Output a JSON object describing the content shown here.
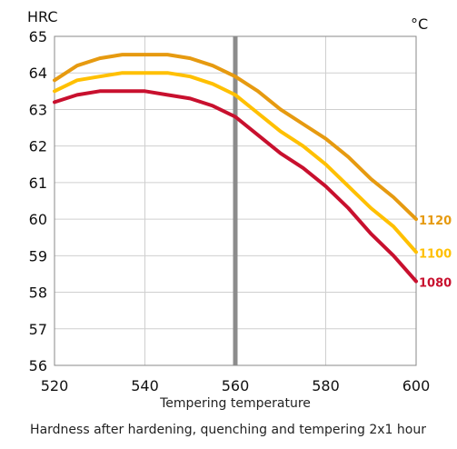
{
  "chart_data": {
    "type": "line",
    "ylabel": "HRC",
    "xunit": "°C",
    "xlabel": "Tempering temperature",
    "caption": "Hardness after hardening, quenching and tempering  2x1 hour",
    "xlim": [
      520,
      600
    ],
    "ylim": [
      56,
      65
    ],
    "xticks": [
      520,
      540,
      560,
      580,
      600
    ],
    "yticks": [
      56,
      57,
      58,
      59,
      60,
      61,
      62,
      63,
      64,
      65
    ],
    "grid": true,
    "highlight_x": 560,
    "series": [
      {
        "name": "1120",
        "color": "#E69A10",
        "x": [
          520,
          525,
          530,
          535,
          540,
          545,
          550,
          555,
          560,
          565,
          570,
          575,
          580,
          585,
          590,
          595,
          600
        ],
        "y": [
          63.8,
          64.2,
          64.4,
          64.5,
          64.5,
          64.5,
          64.4,
          64.2,
          63.9,
          63.5,
          63.0,
          62.6,
          62.2,
          61.7,
          61.1,
          60.6,
          60.0
        ]
      },
      {
        "name": "1100",
        "color": "#FFC000",
        "x": [
          520,
          525,
          530,
          535,
          540,
          545,
          550,
          555,
          560,
          565,
          570,
          575,
          580,
          585,
          590,
          595,
          600
        ],
        "y": [
          63.5,
          63.8,
          63.9,
          64.0,
          64.0,
          64.0,
          63.9,
          63.7,
          63.4,
          62.9,
          62.4,
          62.0,
          61.5,
          60.9,
          60.3,
          59.8,
          59.1
        ]
      },
      {
        "name": "1080",
        "color": "#C8102E",
        "x": [
          520,
          525,
          530,
          535,
          540,
          545,
          550,
          555,
          560,
          565,
          570,
          575,
          580,
          585,
          590,
          595,
          600
        ],
        "y": [
          63.2,
          63.4,
          63.5,
          63.5,
          63.5,
          63.4,
          63.3,
          63.1,
          62.8,
          62.3,
          61.8,
          61.4,
          60.9,
          60.3,
          59.6,
          59.0,
          58.3
        ]
      }
    ]
  }
}
